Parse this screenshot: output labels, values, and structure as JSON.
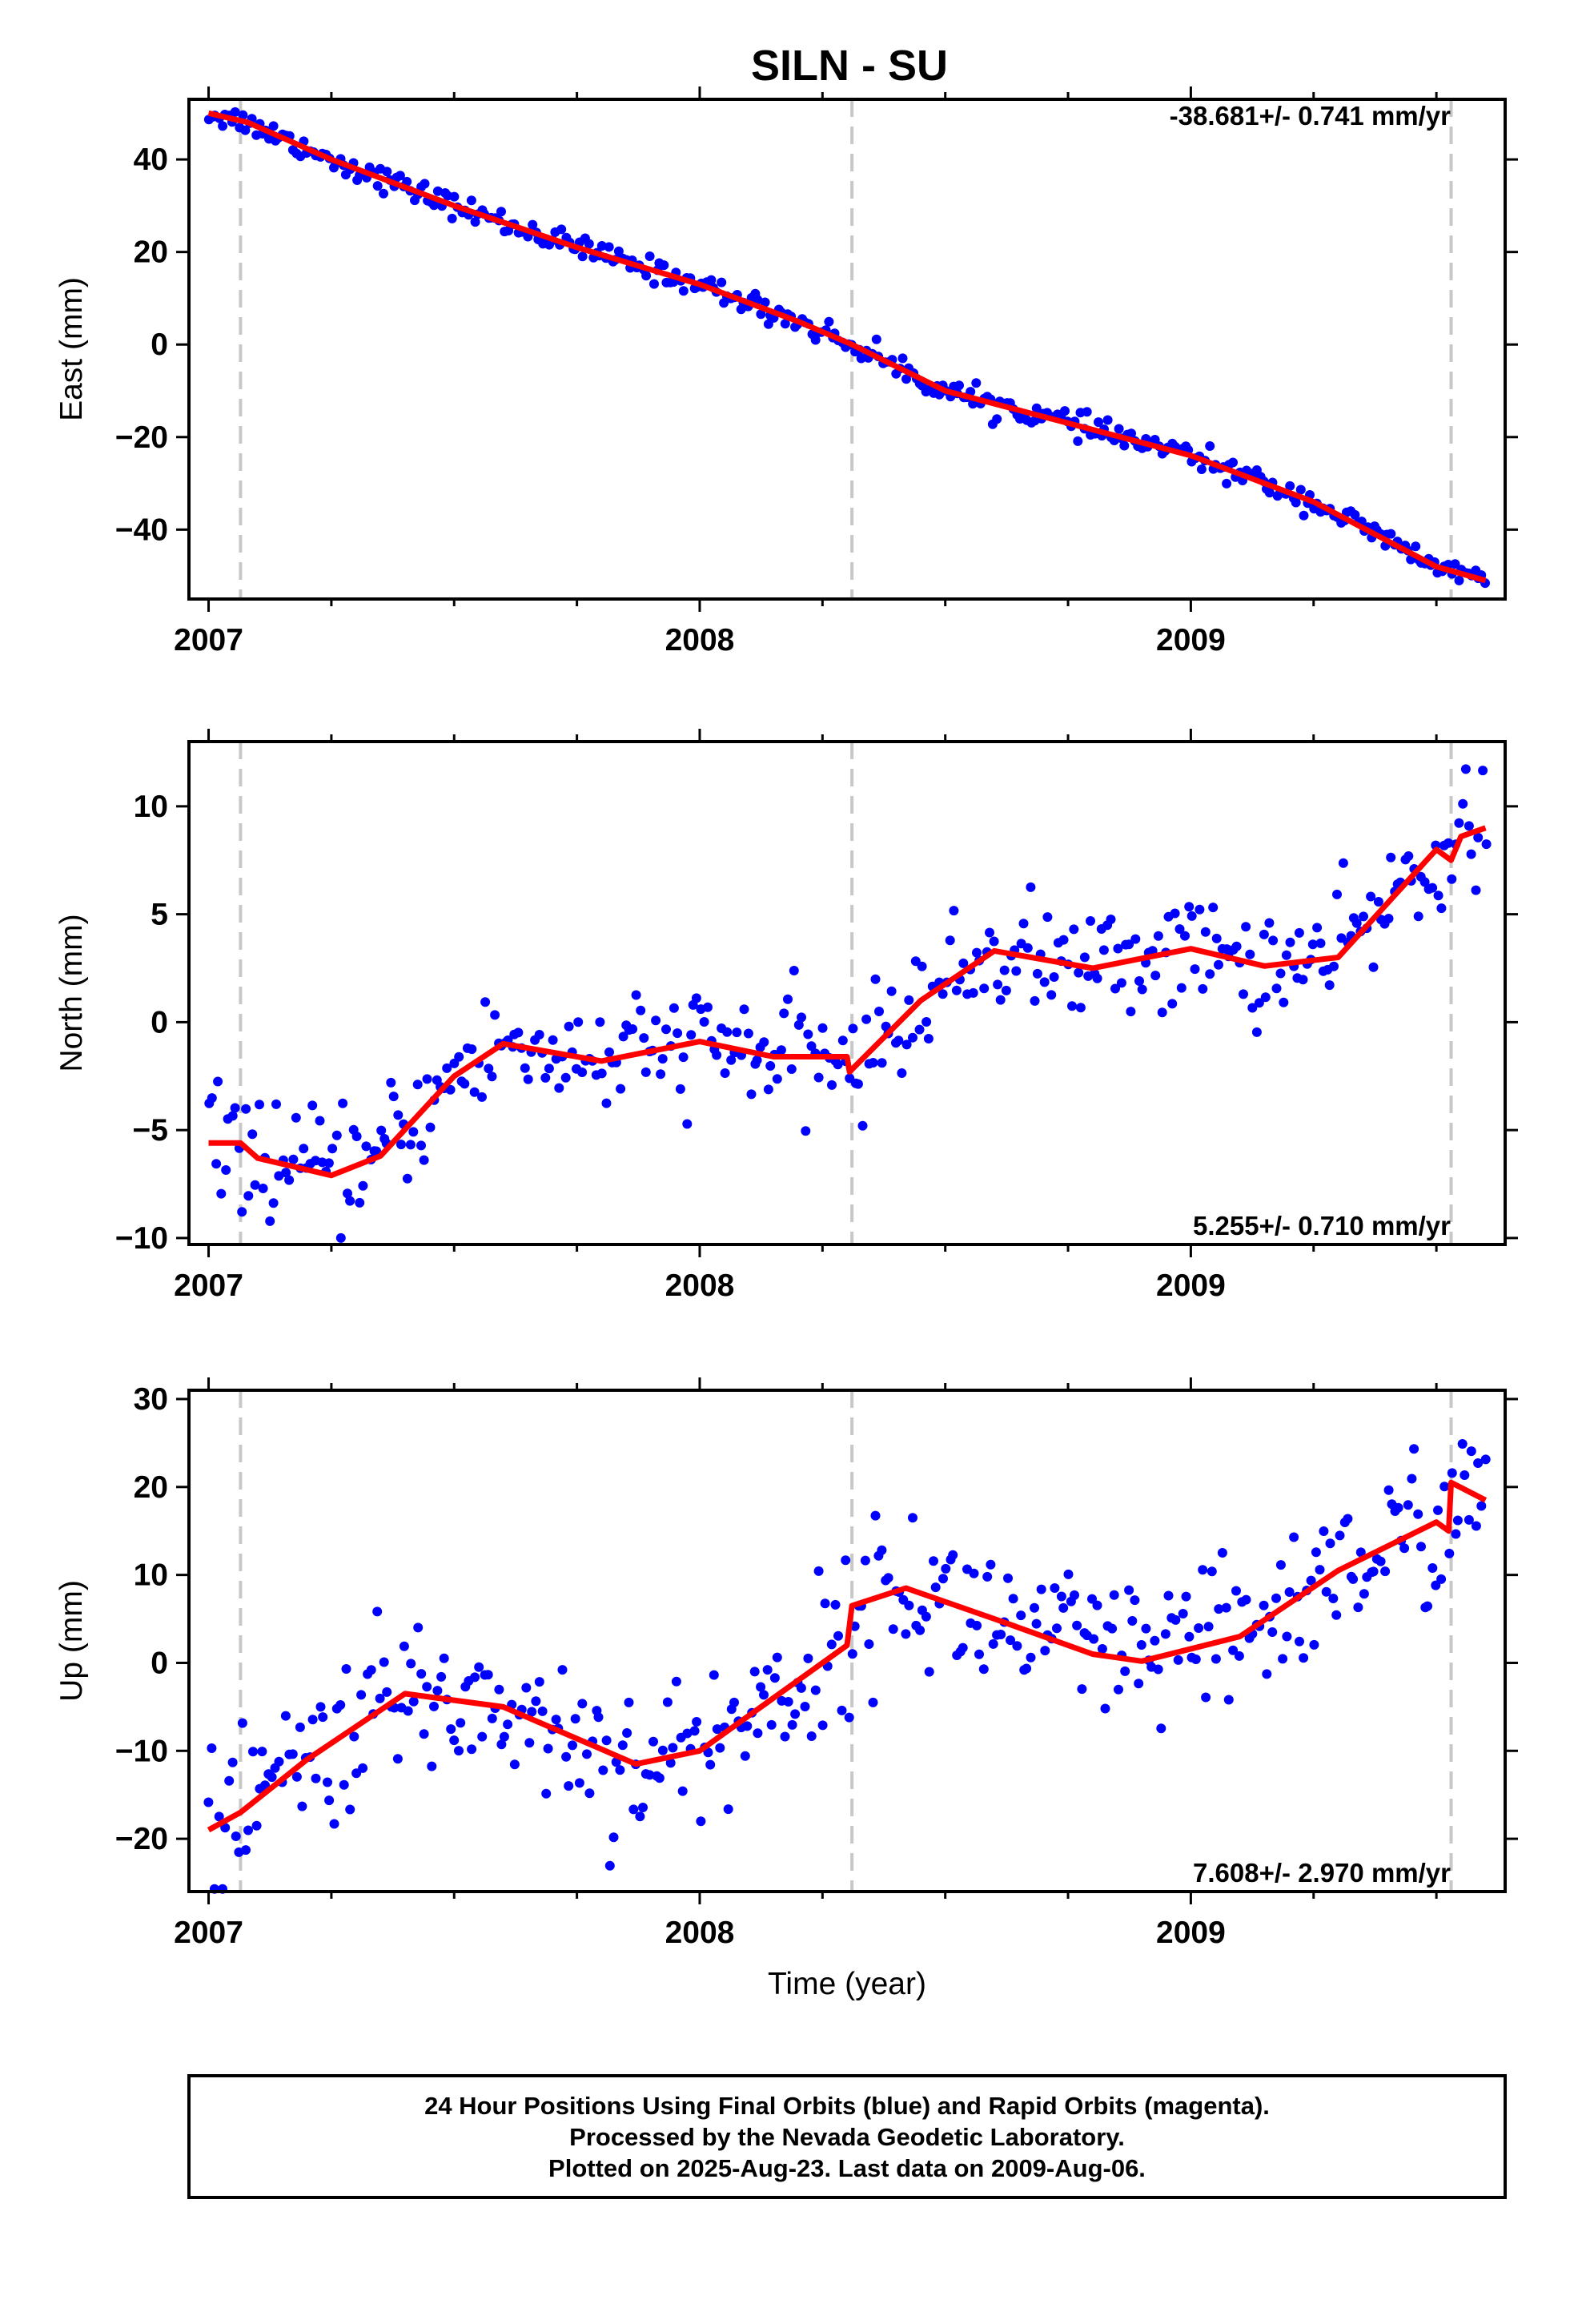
{
  "chart_data": [
    {
      "type": "scatter",
      "title": "SILN - SU",
      "ylabel": "East (mm)",
      "ylim": [
        -55,
        53
      ],
      "xlim": [
        2006.96,
        2009.64
      ],
      "x_ticks": [
        "2007",
        "2008",
        "2009"
      ],
      "y_ticks": [
        40,
        20,
        0,
        -20,
        -40
      ],
      "rate_label": "-38.681+/- 0.741 mm/yr",
      "rate_position": "top-right",
      "breaks": [
        2007.065,
        2008.31,
        2009.53
      ],
      "point_color": "#0000ff",
      "model_color": "#ff0000",
      "grid": false,
      "model": [
        [
          2007.0,
          50
        ],
        [
          2007.08,
          48
        ],
        [
          2007.25,
          40
        ],
        [
          2007.5,
          30
        ],
        [
          2007.75,
          21
        ],
        [
          2008.0,
          13
        ],
        [
          2008.2,
          5
        ],
        [
          2008.31,
          0
        ],
        [
          2008.5,
          -10
        ],
        [
          2008.75,
          -17
        ],
        [
          2009.0,
          -24
        ],
        [
          2009.25,
          -34
        ],
        [
          2009.5,
          -48
        ],
        [
          2009.6,
          -51
        ]
      ],
      "points_per_model": 380,
      "scatter_sd": 1.3
    },
    {
      "type": "scatter",
      "ylabel": "North (mm)",
      "ylim": [
        -10.3,
        13
      ],
      "xlim": [
        2006.96,
        2009.64
      ],
      "x_ticks": [
        "2007",
        "2008",
        "2009"
      ],
      "y_ticks": [
        10,
        5,
        0,
        -5,
        -10
      ],
      "rate_label": "5.255+/- 0.710 mm/yr",
      "rate_position": "bottom-right",
      "breaks": [
        2007.065,
        2008.31,
        2009.53
      ],
      "point_color": "#0000ff",
      "model_color": "#ff0000",
      "grid": false,
      "model": [
        [
          2007.0,
          -5.6
        ],
        [
          2007.065,
          -5.6
        ],
        [
          2007.1,
          -6.3
        ],
        [
          2007.25,
          -7.1
        ],
        [
          2007.35,
          -6.2
        ],
        [
          2007.5,
          -2.5
        ],
        [
          2007.6,
          -1.0
        ],
        [
          2007.8,
          -1.8
        ],
        [
          2008.0,
          -0.9
        ],
        [
          2008.15,
          -1.6
        ],
        [
          2008.3,
          -1.6
        ],
        [
          2008.305,
          -2.3
        ],
        [
          2008.45,
          1.0
        ],
        [
          2008.6,
          3.3
        ],
        [
          2008.8,
          2.5
        ],
        [
          2009.0,
          3.4
        ],
        [
          2009.15,
          2.6
        ],
        [
          2009.3,
          3.0
        ],
        [
          2009.5,
          8.0
        ],
        [
          2009.53,
          7.5
        ],
        [
          2009.55,
          8.6
        ],
        [
          2009.6,
          9.0
        ]
      ],
      "points_per_model": 380,
      "scatter_sd": 1.3
    },
    {
      "type": "scatter",
      "ylabel": "Up (mm)",
      "xlabel": "Time (year)",
      "ylim": [
        -26,
        31
      ],
      "xlim": [
        2006.96,
        2009.64
      ],
      "x_ticks": [
        "2007",
        "2008",
        "2009"
      ],
      "y_ticks": [
        30,
        20,
        10,
        0,
        -10,
        -20
      ],
      "rate_label": "7.608+/- 2.970 mm/yr",
      "rate_position": "bottom-right",
      "breaks": [
        2007.065,
        2008.31,
        2009.53
      ],
      "point_color": "#0000ff",
      "model_color": "#ff0000",
      "grid": false,
      "model": [
        [
          2007.0,
          -19
        ],
        [
          2007.065,
          -17
        ],
        [
          2007.2,
          -11
        ],
        [
          2007.4,
          -3.5
        ],
        [
          2007.6,
          -5
        ],
        [
          2007.87,
          -11.5
        ],
        [
          2008.0,
          -10
        ],
        [
          2008.15,
          -4
        ],
        [
          2008.3,
          2
        ],
        [
          2008.31,
          6.5
        ],
        [
          2008.42,
          8.5
        ],
        [
          2008.6,
          5
        ],
        [
          2008.8,
          1
        ],
        [
          2008.9,
          0.2
        ],
        [
          2009.1,
          3
        ],
        [
          2009.3,
          10.5
        ],
        [
          2009.5,
          16
        ],
        [
          2009.525,
          15
        ],
        [
          2009.53,
          20.5
        ],
        [
          2009.6,
          18.5
        ]
      ],
      "points_per_model": 380,
      "scatter_sd": 4.5
    }
  ],
  "footer": {
    "line1": "24 Hour Positions Using Final Orbits (blue) and Rapid Orbits (magenta).",
    "line2": "Processed by the Nevada Geodetic Laboratory.",
    "line3": "Plotted on 2025-Aug-23. Last data on 2009-Aug-06."
  }
}
